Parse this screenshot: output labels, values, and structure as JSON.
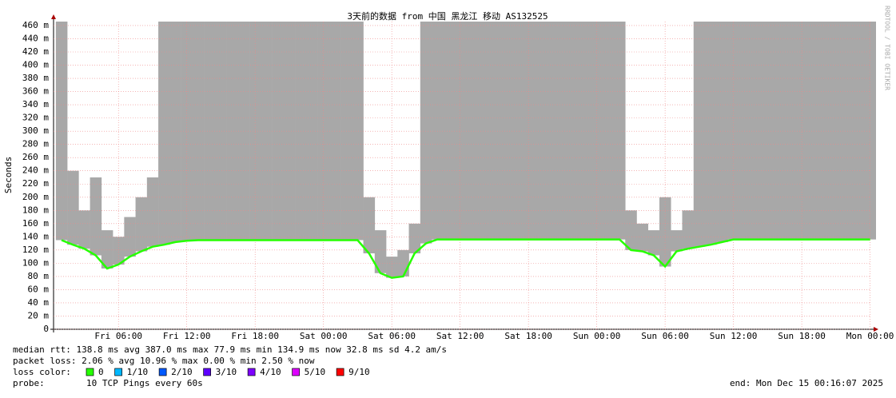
{
  "chart_data": {
    "type": "line",
    "title": "3天前的数据 from 中国 黑龙江 移动 AS132525",
    "y_label": "Seconds",
    "watermark": "RRDTOOL / TOBI OETIKER",
    "x": [
      1,
      2,
      3,
      4,
      5,
      6,
      7,
      8,
      9,
      10,
      11,
      12,
      13,
      14,
      15,
      16,
      17,
      18,
      19,
      20,
      21,
      22,
      23,
      24,
      25,
      26,
      27,
      28,
      29,
      30,
      31,
      32,
      33,
      34,
      35,
      36,
      37,
      38,
      39,
      40,
      41,
      42,
      43,
      44,
      45,
      46,
      47,
      48,
      49,
      50,
      51,
      52,
      53,
      54,
      55,
      56,
      57,
      58,
      59,
      60,
      61,
      62,
      63,
      64,
      65,
      66,
      67,
      68,
      69,
      70,
      71,
      72
    ],
    "xlim": [
      0.3,
      72.1
    ],
    "xticks": [
      {
        "value": 6,
        "label": "Fri 06:00"
      },
      {
        "value": 12,
        "label": "Fri 12:00"
      },
      {
        "value": 18,
        "label": "Fri 18:00"
      },
      {
        "value": 24,
        "label": "Sat 00:00"
      },
      {
        "value": 30,
        "label": "Sat 06:00"
      },
      {
        "value": 36,
        "label": "Sat 12:00"
      },
      {
        "value": 42,
        "label": "Sat 18:00"
      },
      {
        "value": 48,
        "label": "Sun 00:00"
      },
      {
        "value": 54,
        "label": "Sun 06:00"
      },
      {
        "value": 60,
        "label": "Sun 12:00"
      },
      {
        "value": 66,
        "label": "Sun 18:00"
      },
      {
        "value": 72,
        "label": "Mon 00:00"
      }
    ],
    "ylim": [
      0,
      466
    ],
    "yticks": [
      0,
      {
        "value": 20,
        "label": "20 m"
      },
      {
        "value": 40,
        "label": "40 m"
      },
      {
        "value": 60,
        "label": "60 m"
      },
      {
        "value": 80,
        "label": "80 m"
      },
      {
        "value": 100,
        "label": "100 m"
      },
      {
        "value": 120,
        "label": "120 m"
      },
      {
        "value": 140,
        "label": "140 m"
      },
      {
        "value": 160,
        "label": "160 m"
      },
      {
        "value": 180,
        "label": "180 m"
      },
      {
        "value": 200,
        "label": "200 m"
      },
      {
        "value": 220,
        "label": "220 m"
      },
      {
        "value": 240,
        "label": "240 m"
      },
      {
        "value": 260,
        "label": "260 m"
      },
      {
        "value": 280,
        "label": "280 m"
      },
      {
        "value": 300,
        "label": "300 m"
      },
      {
        "value": 320,
        "label": "320 m"
      },
      {
        "value": 340,
        "label": "340 m"
      },
      {
        "value": 360,
        "label": "360 m"
      },
      {
        "value": 380,
        "label": "380 m"
      },
      {
        "value": 400,
        "label": "400 m"
      },
      {
        "value": 420,
        "label": "420 m"
      },
      {
        "value": 440,
        "label": "440 m"
      },
      {
        "value": 460,
        "label": "460 m"
      }
    ],
    "grid": true,
    "series": [
      {
        "name": "max",
        "color": "#a8a8a8",
        "values": [
          466,
          240,
          180,
          230,
          150,
          140,
          170,
          200,
          230,
          466,
          466,
          466,
          466,
          466,
          466,
          466,
          466,
          466,
          466,
          466,
          466,
          466,
          466,
          466,
          466,
          466,
          466,
          200,
          150,
          110,
          120,
          160,
          466,
          466,
          466,
          466,
          466,
          466,
          466,
          466,
          466,
          466,
          466,
          466,
          466,
          466,
          466,
          466,
          466,
          466,
          180,
          160,
          150,
          200,
          150,
          180,
          466,
          466,
          466,
          466,
          466,
          466,
          466,
          466,
          466,
          466,
          466,
          466,
          466,
          466,
          466,
          466
        ]
      },
      {
        "name": "median",
        "color": "#26ff00",
        "values": [
          135,
          128,
          122,
          112,
          92,
          98,
          110,
          118,
          125,
          128,
          132,
          134,
          135,
          135,
          135,
          135,
          135,
          135,
          135,
          135,
          135,
          135,
          135,
          135,
          135,
          135,
          135,
          115,
          85,
          78,
          80,
          115,
          130,
          136,
          136,
          136,
          136,
          136,
          136,
          136,
          136,
          136,
          136,
          136,
          136,
          136,
          136,
          136,
          136,
          136,
          120,
          118,
          112,
          95,
          118,
          122,
          125,
          128,
          132,
          136,
          136,
          136,
          136,
          136,
          136,
          136,
          136,
          136,
          136,
          136,
          136,
          136
        ]
      }
    ],
    "stats": [
      "median rtt:  138.8 ms avg  387.0 ms max  77.9 ms min  134.9 ms now  32.8 ms sd  4.2  am/s",
      "packet loss: 2.06 % avg  10.96 % max  0.00 % min  2.50 % now"
    ],
    "loss_title": "loss color:",
    "loss_legend": [
      {
        "label": "0",
        "color": "#26ff00"
      },
      {
        "label": "1/10",
        "color": "#00b8ff"
      },
      {
        "label": "2/10",
        "color": "#0059ff"
      },
      {
        "label": "3/10",
        "color": "#5e00ff"
      },
      {
        "label": "4/10",
        "color": "#7e00ff"
      },
      {
        "label": "5/10",
        "color": "#dd00ff"
      },
      {
        "label": "9/10",
        "color": "#ff0000"
      }
    ],
    "probe_title": "probe:",
    "probe": "10 TCP Pings every 60s",
    "end": "end: Mon Dec 15 00:16:07 2025"
  }
}
